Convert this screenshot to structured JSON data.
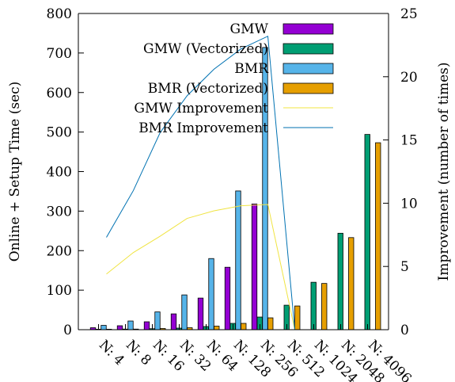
{
  "chart_data": {
    "type": "bar",
    "categories": [
      "N: 4",
      "N: 8",
      "N: 16",
      "N: 32",
      "N: 64",
      "N: 128",
      "N: 256",
      "N: 512",
      "N: 1024",
      "N: 2048",
      "N: 4096"
    ],
    "ylabel": "Online + Setup Time (sec)",
    "y2label": "Improvement (number of times)",
    "ylim": [
      0,
      800
    ],
    "y2lim": [
      0,
      25
    ],
    "yticks": [
      0,
      100,
      200,
      300,
      400,
      500,
      600,
      700,
      800
    ],
    "y2ticks": [
      0,
      5,
      10,
      15,
      20,
      25
    ],
    "legend_position": "top-right",
    "grid": false,
    "bar_series": [
      {
        "name": "GMW",
        "color": "#9400d3",
        "values": [
          5,
          10,
          20,
          40,
          80,
          158,
          318,
          null,
          null,
          null,
          null
        ]
      },
      {
        "name": "GMW (Vectorized)",
        "color": "#009e73",
        "values": [
          1,
          1.5,
          2.5,
          4,
          8,
          16,
          32,
          62,
          120,
          244,
          494
        ]
      },
      {
        "name": "BMR",
        "color": "#56b4e9",
        "values": [
          11,
          22,
          45,
          88,
          180,
          351,
          714,
          null,
          null,
          null,
          null
        ]
      },
      {
        "name": "BMR (Vectorized)",
        "color": "#e69f00",
        "values": [
          1,
          1.5,
          3,
          5,
          9,
          16,
          30,
          60,
          117,
          233,
          473
        ]
      }
    ],
    "line_series": [
      {
        "name": "GMW Improvement",
        "color": "#f0e442",
        "axis": "y2",
        "values": [
          4.4,
          6.1,
          7.4,
          8.8,
          9.4,
          9.8,
          9.9,
          0,
          null,
          null,
          null
        ]
      },
      {
        "name": "BMR Improvement",
        "color": "#0072b2",
        "axis": "y2",
        "values": [
          7.3,
          11,
          15.6,
          18.5,
          20.6,
          22.2,
          23.2,
          0,
          null,
          null,
          null
        ]
      }
    ]
  }
}
